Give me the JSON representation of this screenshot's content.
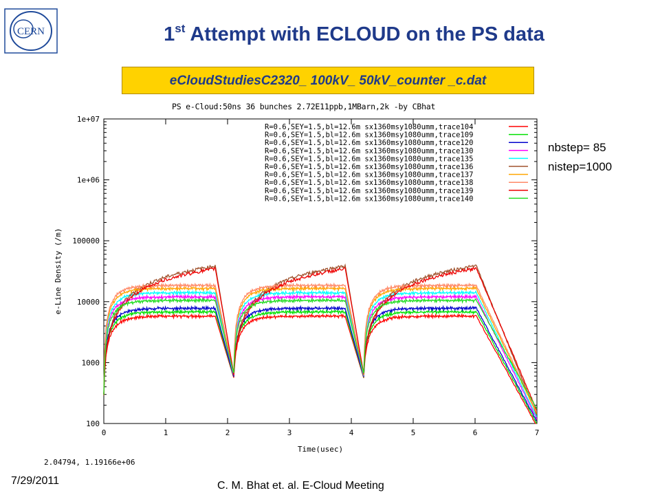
{
  "slide": {
    "title_main": "1",
    "title_sup": "st",
    "title_rest": " Attempt with ECLOUD on the PS data",
    "file_label": "eCloudStudiesC2320_ 100kV_ 50kV_counter _c.dat",
    "nbstep": "nbstep= 85",
    "nistep": "nistep=1000",
    "coord_readout": "2.04794,  1.19166e+06",
    "date": "7/29/2011",
    "footer": "C. M. Bhat et. al. E-Cloud Meeting",
    "logo_text": "CERN"
  },
  "chart_data": {
    "type": "line",
    "title": "PS e-Cloud:50ns 36 bunches 2.72E11ppb,1MBarn,2k -by CBhat",
    "xlabel": "Time(usec)",
    "ylabel": "e-Line Density (/m)",
    "xlim": [
      0,
      7
    ],
    "ylim": [
      100,
      10000000
    ],
    "yscale": "log",
    "x_ticks": [
      "0",
      "1",
      "2",
      "3",
      "4",
      "5",
      "6",
      "7"
    ],
    "y_ticks": [
      "100",
      "1000",
      "10000",
      "100000",
      "1e+06",
      "1e+07"
    ],
    "legend_position": "top-right",
    "series": [
      {
        "name": "R=0.6,SEY=1.5,bl=12.6m sx1360msy1080umm,trace104",
        "color": "#ff0000",
        "plateau": 5800,
        "pattern": "flat"
      },
      {
        "name": "R=0.6,SEY=1.5,bl=12.6m sx1360msy1080umm,trace109",
        "color": "#00e000",
        "plateau": 6800,
        "pattern": "flat"
      },
      {
        "name": "R=0.6,SEY=1.5,bl=12.6m sx1360msy1080umm,trace120",
        "color": "#0000cc",
        "plateau": 7800,
        "pattern": "flat"
      },
      {
        "name": "R=0.6,SEY=1.5,bl=12.6m sx1360msy1080umm,trace130",
        "color": "#ff00ff",
        "plateau": 12000,
        "pattern": "flat"
      },
      {
        "name": "R=0.6,SEY=1.5,bl=12.6m sx1360msy1080umm,trace135",
        "color": "#00ffff",
        "plateau": 14000,
        "pattern": "flat"
      },
      {
        "name": "R=0.6,SEY=1.5,bl=12.6m sx1360msy1080umm,trace136",
        "color": "#a0522d",
        "plateau": 40000,
        "pattern": "grow"
      },
      {
        "name": "R=0.6,SEY=1.5,bl=12.6m sx1360msy1080umm,trace137",
        "color": "#ffa500",
        "plateau": 16500,
        "pattern": "flat"
      },
      {
        "name": "R=0.6,SEY=1.5,bl=12.6m sx1360msy1080umm,trace138",
        "color": "#ff8866",
        "plateau": 18500,
        "pattern": "flat"
      },
      {
        "name": "R=0.6,SEY=1.5,bl=12.6m sx1360msy1080umm,trace139",
        "color": "#ee0000",
        "plateau": 36000,
        "pattern": "grow"
      },
      {
        "name": "R=0.6,SEY=1.5,bl=12.6m sx1360msy1080umm,trace140",
        "color": "#22dd22",
        "plateau": 10500,
        "pattern": "flat"
      }
    ],
    "batches": [
      {
        "start": 0.0,
        "end": 1.8,
        "decay_min_t": 2.1
      },
      {
        "start": 2.1,
        "end": 3.9,
        "decay_min_t": 4.2
      },
      {
        "start": 4.2,
        "end": 6.0,
        "decay_end_t": 7.0
      }
    ]
  }
}
